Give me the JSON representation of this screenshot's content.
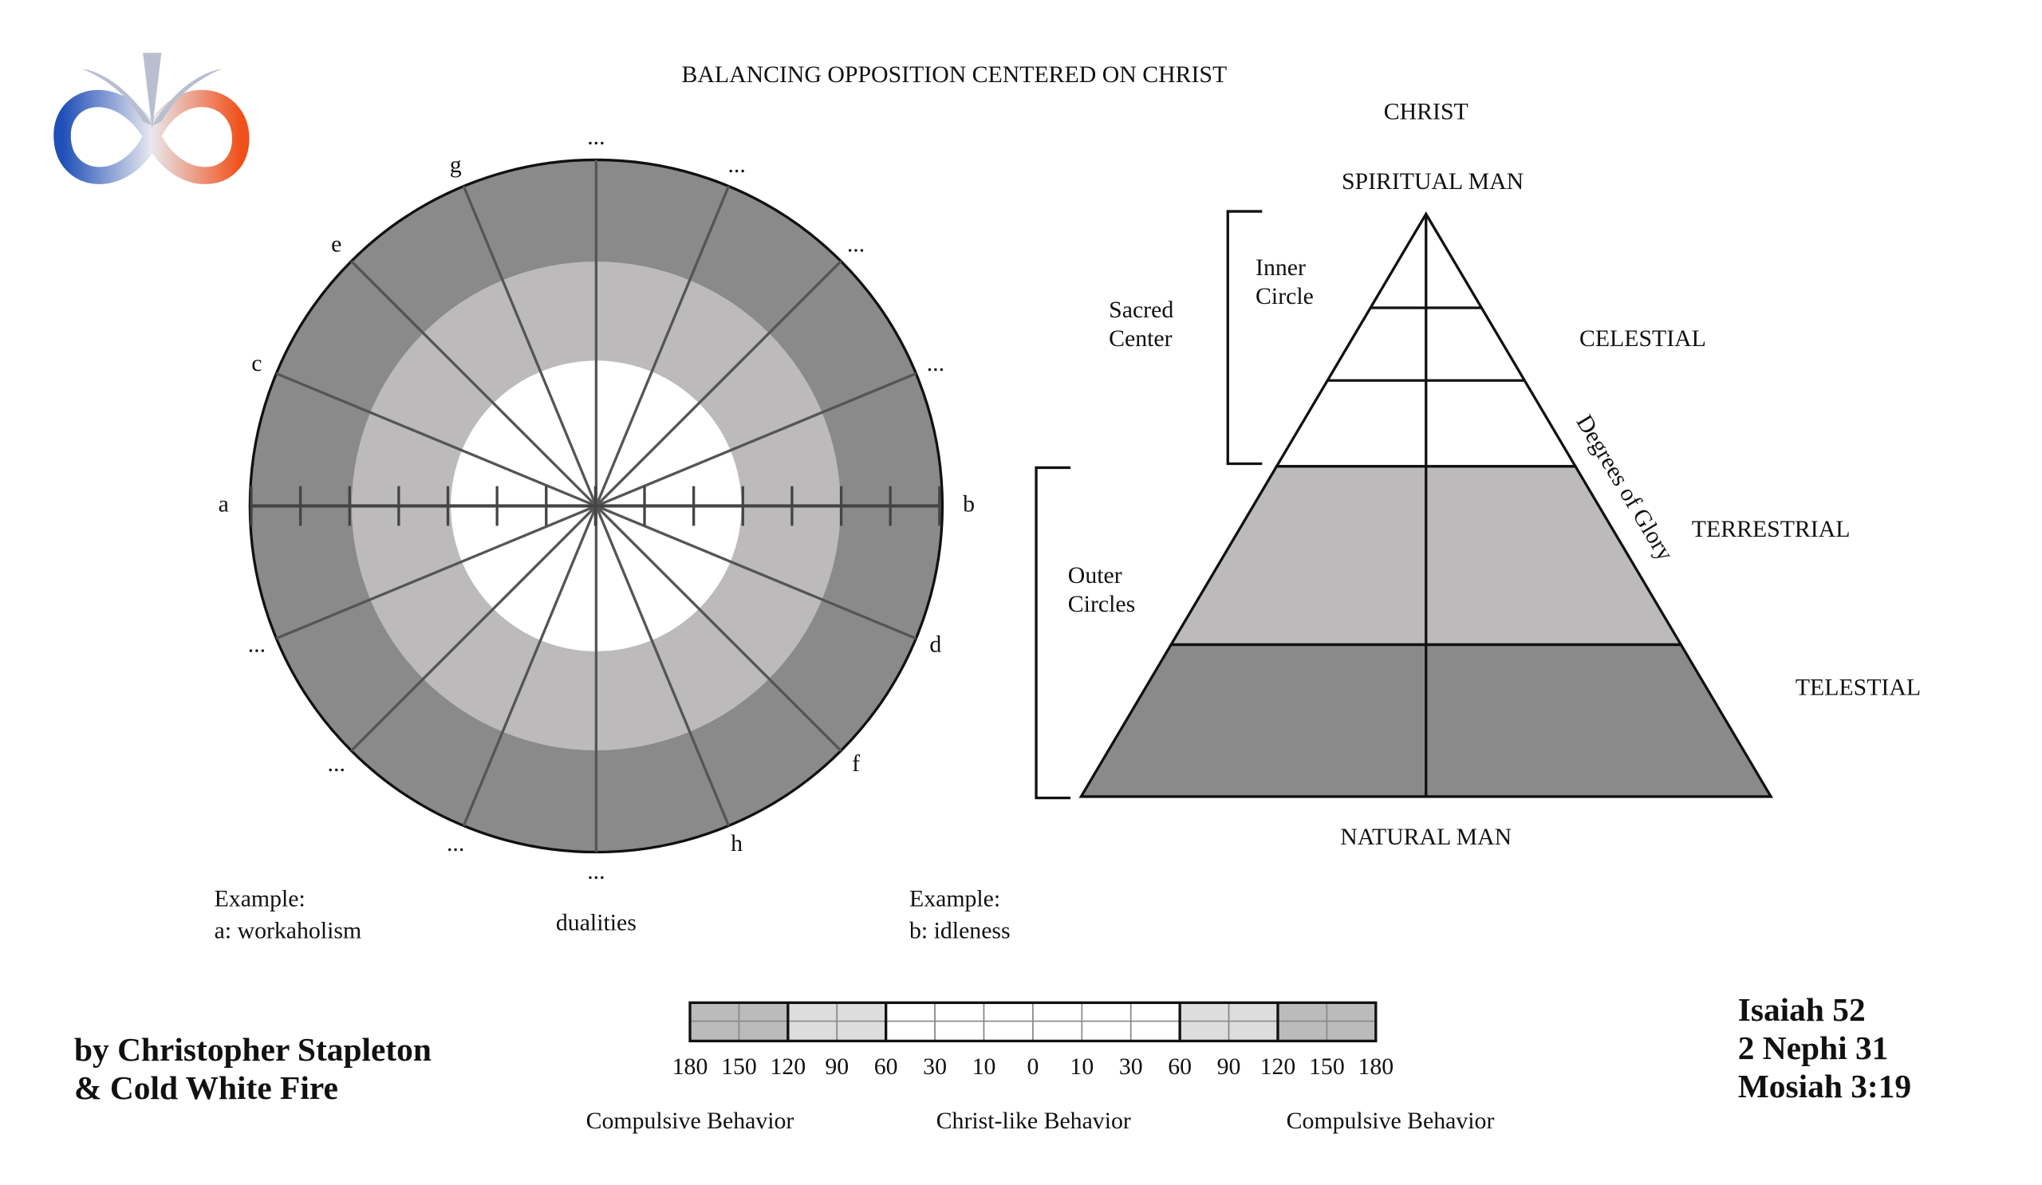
{
  "title": "BALANCING OPPOSITION CENTERED ON CHRIST",
  "wheel": {
    "labels": [
      "b",
      "...",
      "...",
      "...",
      "...",
      "g",
      "e",
      "c",
      "a",
      "...",
      "...",
      "...",
      "...",
      "h",
      "f",
      "d"
    ],
    "caption": "dualities"
  },
  "examples": [
    {
      "heading": "Example:",
      "text": "a: workaholism"
    },
    {
      "heading": "Example:",
      "text": "b: idleness"
    }
  ],
  "pyramid": {
    "top": "CHRIST",
    "apex": "SPIRITUAL MAN",
    "base": "NATURAL MAN",
    "levels": [
      "CELESTIAL",
      "TERRESTRIAL",
      "TELESTIAL"
    ],
    "side_label": "Degrees of Glory",
    "inner": [
      "Inner",
      "Circle"
    ],
    "sacred": [
      "Sacred",
      "Center"
    ],
    "outer": [
      "Outer",
      "Circles"
    ]
  },
  "scale": {
    "ticks": [
      180,
      150,
      120,
      90,
      60,
      30,
      10,
      0,
      10,
      30,
      60,
      90,
      120,
      150,
      180
    ],
    "captions": [
      "Compulsive Behavior",
      "Christ-like Behavior",
      "Compulsive Behavior"
    ]
  },
  "credits": [
    "by Christopher Stapleton",
    "& Cold White Fire"
  ],
  "references": [
    "Isaiah 52",
    "2 Nephi 31",
    "Mosiah 3:19"
  ]
}
